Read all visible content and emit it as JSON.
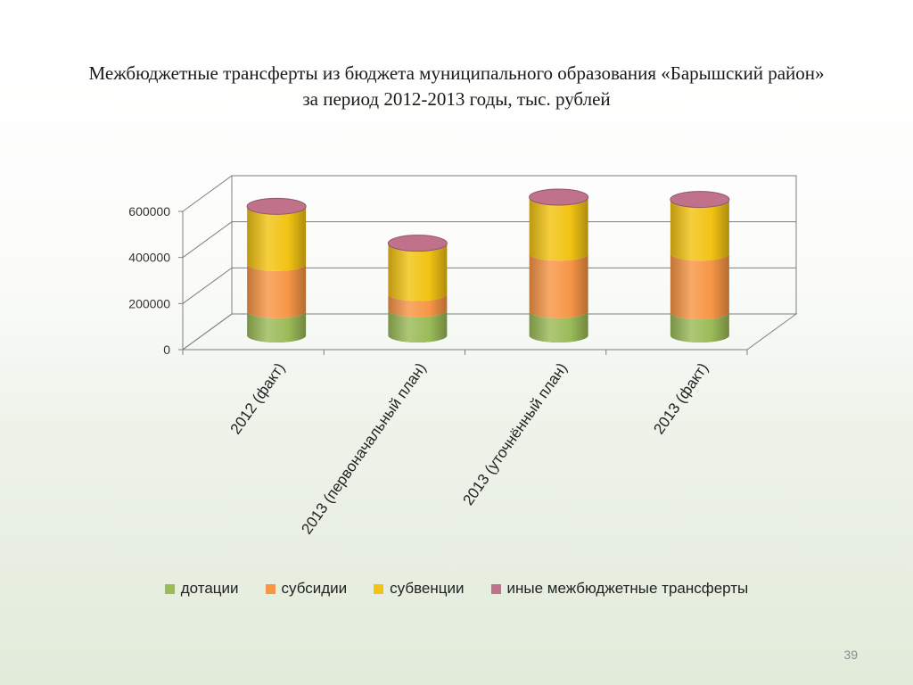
{
  "slide": {
    "title_line1": "Межбюджетные трансферты из бюджета муниципального образования «Барышский район»",
    "title_line2": "за период 2012-2013 годы, тыс. рублей",
    "page_number": "39"
  },
  "chart_data": {
    "type": "bar",
    "stacked": true,
    "style": "3d-cylinder",
    "categories": [
      "2012 (факт)",
      "2013  (первоначальный  план)",
      "2013 (уточнённый план)",
      "2013 (факт)"
    ],
    "series": [
      {
        "name": "дотации",
        "color": "#9bbb59",
        "values": [
          105000,
          110000,
          105000,
          100000
        ]
      },
      {
        "name": "субсидии",
        "color": "#f79646",
        "values": [
          205000,
          70000,
          250000,
          255000
        ]
      },
      {
        "name": "субвенции",
        "color": "#f2c314",
        "values": [
          245000,
          215000,
          240000,
          230000
        ]
      },
      {
        "name": "иные межбюджетные трансферты",
        "color": "#c0728a",
        "values": [
          5000,
          5000,
          5000,
          5000
        ]
      }
    ],
    "yticks": [
      0,
      200000,
      400000,
      600000
    ],
    "ylim": [
      0,
      600000
    ],
    "grid": true,
    "legend_position": "bottom"
  }
}
